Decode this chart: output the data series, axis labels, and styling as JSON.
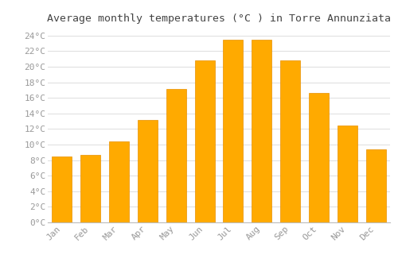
{
  "title": "Average monthly temperatures (°C ) in Torre Annunziata",
  "months": [
    "Jan",
    "Feb",
    "Mar",
    "Apr",
    "May",
    "Jun",
    "Jul",
    "Aug",
    "Sep",
    "Oct",
    "Nov",
    "Dec"
  ],
  "values": [
    8.5,
    8.7,
    10.4,
    13.2,
    17.1,
    20.8,
    23.5,
    23.5,
    20.8,
    16.6,
    12.5,
    9.4
  ],
  "bar_color": "#FFAA00",
  "bar_color_light": "#FFD060",
  "bar_edge_color": "#E89000",
  "background_color": "#FFFFFF",
  "grid_color": "#DDDDDD",
  "ylim": [
    0,
    25
  ],
  "yticks": [
    0,
    2,
    4,
    6,
    8,
    10,
    12,
    14,
    16,
    18,
    20,
    22,
    24
  ],
  "title_fontsize": 9.5,
  "tick_fontsize": 8,
  "tick_font_color": "#999999",
  "title_color": "#444444"
}
